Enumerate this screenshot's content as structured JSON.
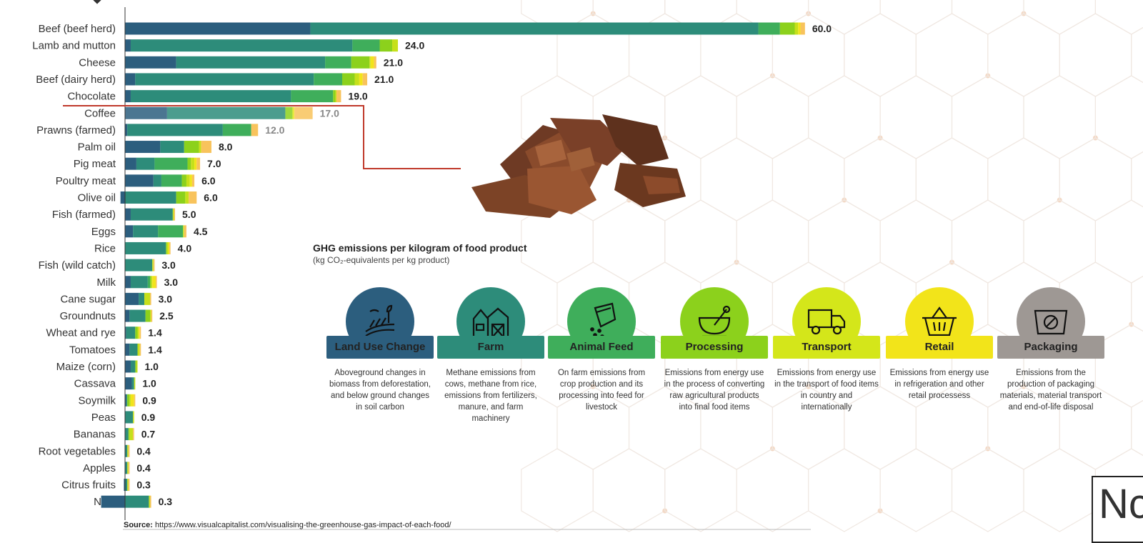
{
  "chart_data": {
    "type": "bar",
    "title": "GHG emissions per kilogram of food product",
    "subtitle": "(kg CO2-equivalents per kg product)",
    "stage_names": [
      "Land Use Change",
      "Farm",
      "Animal Feed",
      "Processing",
      "Transport",
      "Retail",
      "Packaging"
    ],
    "stage_colors": [
      "#2c5e7e",
      "#2d8c7a",
      "#3fae5b",
      "#8cd11c",
      "#c6e01a",
      "#f2e41a",
      "#f8c35c"
    ],
    "categories": [
      "Beef (beef herd)",
      "Lamb and mutton",
      "Cheese",
      "Beef (dairy herd)",
      "Chocolate",
      "Coffee",
      "Prawns (farmed)",
      "Palm oil",
      "Pig meat",
      "Poultry meat",
      "Olive oil",
      "Fish (farmed)",
      "Eggs",
      "Rice",
      "Fish (wild catch)",
      "Milk",
      "Cane sugar",
      "Groundnuts",
      "Wheat and rye",
      "Tomatoes",
      "Maize (corn)",
      "Cassava",
      "Soymilk",
      "Peas",
      "Bananas",
      "Root vegetables",
      "Apples",
      "Citrus fruits",
      "Nuts"
    ],
    "totals": [
      "60.0",
      "24.0",
      "21.0",
      "21.0",
      "19.0",
      "17.0",
      "12.0",
      "8.0",
      "7.0",
      "6.0",
      "6.0",
      "5.0",
      "4.5",
      "4.0",
      "3.0",
      "3.0",
      "3.0",
      "2.5",
      "1.4",
      "1.4",
      "1.0",
      "1.0",
      "0.9",
      "0.9",
      "0.7",
      "0.4",
      "0.4",
      "0.3",
      "0.3"
    ],
    "segments": [
      [
        16.3,
        39.4,
        1.9,
        1.3,
        0.3,
        0.2,
        0.4
      ],
      [
        0.5,
        19.5,
        2.4,
        1.1,
        0.5,
        0.0,
        0.0
      ],
      [
        4.5,
        13.1,
        2.3,
        1.6,
        0.1,
        0.3,
        0.2
      ],
      [
        0.9,
        15.7,
        2.5,
        1.1,
        0.4,
        0.3,
        0.4
      ],
      [
        0.5,
        14.1,
        3.7,
        0.2,
        0.1,
        0.0,
        0.4
      ],
      [
        3.7,
        10.4,
        0.0,
        0.6,
        0.1,
        0.1,
        1.6
      ],
      [
        0.2,
        8.4,
        2.5,
        0.0,
        0.0,
        0.0,
        0.6
      ],
      [
        3.1,
        2.1,
        0.0,
        1.3,
        0.2,
        0.0,
        0.9
      ],
      [
        1.0,
        1.6,
        2.9,
        0.3,
        0.3,
        0.2,
        0.3
      ],
      [
        2.5,
        0.7,
        1.8,
        0.4,
        0.3,
        0.2,
        0.2
      ],
      [
        -0.4,
        4.5,
        0.0,
        0.8,
        0.3,
        0.0,
        0.7
      ],
      [
        0.5,
        3.7,
        0.0,
        0.0,
        0.1,
        0.0,
        0.1
      ],
      [
        0.7,
        2.2,
        2.2,
        0.0,
        0.1,
        0.0,
        0.2
      ],
      [
        0.0,
        3.6,
        0.0,
        0.1,
        0.1,
        0.1,
        0.1
      ],
      [
        0.0,
        2.4,
        0.0,
        0.0,
        0.1,
        0.0,
        0.1
      ],
      [
        0.5,
        1.5,
        0.2,
        0.1,
        0.1,
        0.3,
        0.1
      ],
      [
        1.2,
        0.5,
        0.0,
        0.0,
        0.5,
        0.0,
        0.1
      ],
      [
        0.4,
        1.4,
        0.0,
        0.4,
        0.1,
        0.0,
        0.1
      ],
      [
        0.1,
        0.8,
        0.0,
        0.2,
        0.1,
        0.1,
        0.1
      ],
      [
        0.4,
        0.7,
        0.0,
        0.0,
        0.2,
        0.0,
        0.1
      ],
      [
        0.5,
        0.4,
        0.0,
        0.1,
        0.1,
        0.0,
        0.0
      ],
      [
        0.6,
        0.2,
        0.0,
        0.0,
        0.1,
        0.0,
        0.0
      ],
      [
        0.1,
        0.1,
        0.0,
        0.2,
        0.1,
        0.3,
        0.1
      ],
      [
        0.0,
        0.7,
        0.0,
        0.0,
        0.1,
        0.0,
        0.0
      ],
      [
        0.0,
        0.3,
        0.0,
        0.1,
        0.3,
        0.0,
        0.1
      ],
      [
        0.0,
        0.2,
        0.0,
        0.0,
        0.1,
        0.0,
        0.1
      ],
      [
        0.0,
        0.2,
        0.0,
        0.0,
        0.1,
        0.0,
        0.1
      ],
      [
        -0.1,
        0.2,
        0.0,
        0.0,
        0.1,
        0.0,
        0.1
      ],
      [
        -2.1,
        2.1,
        0.0,
        0.0,
        0.1,
        0.0,
        0.1
      ]
    ],
    "value_axis": {
      "min": -2.1,
      "max": 60
    },
    "highlighted_category": "Chocolate"
  },
  "callout": {
    "title": "GHG emissions per kilogram of food product",
    "subtitle": "(kg CO₂-equivalents per kg product)"
  },
  "stages": [
    {
      "label": "Land Use Change",
      "icon": "land-use-icon",
      "color": "#2c5e7e",
      "tag_color": "#2c5e7e",
      "description": "Aboveground changes in biomass from deforestation, and below ground changes in soil carbon"
    },
    {
      "label": "Farm",
      "icon": "barn-icon",
      "color": "#2d8c7a",
      "tag_color": "#2d8c7a",
      "description": "Methane emissions from cows, methane from rice, emissions from fertilizers, manure, and farm machinery"
    },
    {
      "label": "Animal Feed",
      "icon": "feed-bag-icon",
      "color": "#3fae5b",
      "tag_color": "#3fae5b",
      "description": "On farm emissions from crop production and its processing into feed for livestock"
    },
    {
      "label": "Processing",
      "icon": "processing-icon",
      "color": "#8cd11c",
      "tag_color": "#8cd11c",
      "description": "Emissions from energy use in the process of converting raw agricultural products into final food items"
    },
    {
      "label": "Transport",
      "icon": "truck-icon",
      "color": "#d4e61a",
      "tag_color": "#d4e61a",
      "description": "Emissions from energy use in the transport of food items in country and internationally"
    },
    {
      "label": "Retail",
      "icon": "basket-icon",
      "color": "#f2e41a",
      "tag_color": "#f2e41a",
      "description": "Emissions from energy use in refrigeration and other retail processess"
    },
    {
      "label": "Packaging",
      "icon": "package-icon",
      "color": "#9e9894",
      "tag_color": "#9e9894",
      "description": "Emissions from the production of packaging materials, material transport and end-of-life disposal"
    }
  ],
  "source": {
    "label": "Source:",
    "url": "https://www.visualcapitalist.com/visualising-the-greenhouse-gas-impact-of-each-food/"
  },
  "brand": {
    "text": "Nc"
  },
  "colors": {
    "highlight_line": "#c0392b",
    "chocolate_image": "chocolate-pieces-image"
  }
}
